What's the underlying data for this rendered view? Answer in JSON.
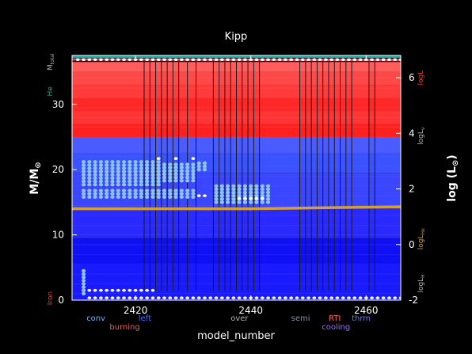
{
  "chart_data": {
    "type": "kippenhahn",
    "title": "Kipp",
    "xlabel": "model_number",
    "ylabel_left": "M/M",
    "ylabel_left_sub": "⊙",
    "ylabel_right": "log (L",
    "ylabel_right_sub": "⊙",
    "ylabel_right_end": ")",
    "xlim": [
      2409,
      2466
    ],
    "ylim_left": [
      0,
      37.5
    ],
    "ylim_right": [
      -2,
      6.8
    ],
    "x_ticks": [
      2420,
      2440,
      2460
    ],
    "y_ticks_left": [
      0,
      10,
      20,
      30
    ],
    "y_ticks_right": [
      -2,
      0,
      2,
      4,
      6
    ],
    "side_labels_left": [
      {
        "text": "M",
        "sub": "total",
        "color": "#b0b0b0",
        "y": 36.5
      },
      {
        "text": "He",
        "sub": "",
        "color": "#2aa198",
        "y": 32.0
      },
      {
        "text": "Iron",
        "sub": "",
        "color": "#ff3030",
        "y": 0.3
      }
    ],
    "side_labels_right": [
      {
        "text": "logL",
        "sub": "",
        "color": "#ff3030",
        "y": 6.0
      },
      {
        "text": "logL",
        "sub": "ν",
        "color": "#b0b0b0",
        "y": 3.9
      },
      {
        "text": "logL",
        "sub": "He",
        "color": "#c8a040",
        "y": 0.2
      },
      {
        "text": "logL",
        "sub": "H",
        "color": "#b0b0b0",
        "y": -1.4
      }
    ],
    "legend": [
      {
        "text": "conv",
        "color": "#6fb0ff",
        "row": 1,
        "x": 2411.5
      },
      {
        "text": "burning",
        "color": "#ff5050",
        "row": 2,
        "x": 2415.5
      },
      {
        "text": "left",
        "color": "#4a6cff",
        "row": 1,
        "x": 2420.5
      },
      {
        "text": "over",
        "color": "#b0b0b0",
        "row": 1,
        "x": 2436.5
      },
      {
        "text": "semi",
        "color": "#8090a0",
        "row": 1,
        "x": 2447.0
      },
      {
        "text": "RTI",
        "color": "#ff6060",
        "row": 1,
        "x": 2453.5
      },
      {
        "text": "cooling",
        "color": "#9a6cff",
        "row": 2,
        "x": 2452.3
      },
      {
        "text": "thrm",
        "color": "#7070ff",
        "row": 1,
        "x": 2457.5
      }
    ],
    "burning_bands": [
      {
        "y0": 0.0,
        "y1": 5.5,
        "color": "#1a1aff"
      },
      {
        "y0": 5.5,
        "y1": 9.5,
        "color": "#1010f5"
      },
      {
        "y0": 9.5,
        "y1": 14.0,
        "color": "#2a2aff"
      },
      {
        "y0": 14.0,
        "y1": 19.5,
        "color": "#3a46ff"
      },
      {
        "y0": 19.5,
        "y1": 22.5,
        "color": "#3a52ff"
      },
      {
        "y0": 22.5,
        "y1": 25.0,
        "color": "#4a5cff"
      },
      {
        "y0": 25.0,
        "y1": 27.0,
        "color": "#ff2020"
      },
      {
        "y0": 27.0,
        "y1": 29.0,
        "color": "#ff3434"
      },
      {
        "y0": 29.0,
        "y1": 31.0,
        "color": "#ff2828"
      },
      {
        "y0": 31.0,
        "y1": 33.0,
        "color": "#ff3c3c"
      },
      {
        "y0": 33.0,
        "y1": 35.0,
        "color": "#ff4848"
      },
      {
        "y0": 35.0,
        "y1": 36.5,
        "color": "#ff5c5c"
      }
    ],
    "total_mass": 36.5,
    "he_core_line": {
      "color": "#d4a030",
      "points": [
        [
          2409,
          14.0
        ],
        [
          2440,
          14.0
        ],
        [
          2452,
          14.15
        ],
        [
          2466,
          14.3
        ]
      ]
    },
    "logL_line": {
      "color": "#e84060",
      "points": [
        [
          2409,
          36.9
        ],
        [
          2466,
          36.8
        ]
      ]
    },
    "mix_region_lines": [
      2421.5,
      2422.5,
      2423.5,
      2424.5,
      2425.5,
      2426.5,
      2427.5,
      2429.0,
      2430.5,
      2433.5,
      2434.5,
      2435.5,
      2436.5,
      2437.5,
      2438.5,
      2439.5,
      2440.5,
      2441.5,
      2448.5,
      2449.5,
      2450.5,
      2451.5,
      2452.5,
      2453.5,
      2454.5,
      2455.5,
      2456.5,
      2457.5,
      2460.5,
      2461.5
    ],
    "conv_dots": [
      {
        "x0": 2411,
        "x1": 2424,
        "step": 1,
        "y0": 17.7,
        "y1": 21.5,
        "dy": 0.5,
        "color": "#8cc4ff"
      },
      {
        "x0": 2425,
        "x1": 2430,
        "step": 1,
        "y0": 18.3,
        "y1": 21.0,
        "dy": 0.5,
        "color": "#8cc4ff"
      },
      {
        "x0": 2431,
        "x1": 2432,
        "step": 1,
        "y0": 20.0,
        "y1": 21.0,
        "dy": 0.5,
        "color": "#8cc4ff"
      },
      {
        "x0": 2411,
        "x1": 2430,
        "step": 1,
        "y0": 15.8,
        "y1": 16.8,
        "dy": 0.5,
        "color": "#8cc4ff"
      },
      {
        "x0": 2434,
        "x1": 2443,
        "step": 1,
        "y0": 15.0,
        "y1": 17.5,
        "dy": 0.5,
        "color": "#8cc4ff"
      },
      {
        "x0": 2411,
        "x1": 2411,
        "step": 1,
        "y0": 1.0,
        "y1": 4.8,
        "dy": 0.5,
        "color": "#8cc4ff"
      }
    ],
    "white_dots": [
      {
        "x0": 2412,
        "x1": 2423,
        "step": 1,
        "y": 1.5,
        "color": "#ffffff"
      },
      {
        "x0": 2412,
        "x1": 2466,
        "step": 1,
        "y": 0.35,
        "color": "#ffffff"
      },
      {
        "x0": 2410,
        "x1": 2466,
        "step": 1,
        "y": 36.85,
        "color": "#ffffff"
      },
      {
        "x0": 2438,
        "x1": 2442,
        "step": 1,
        "y": 15.6,
        "color": "#ffffff"
      },
      {
        "x0": 2431,
        "x1": 2432,
        "step": 1,
        "y": 16.0,
        "color": "#ffffff"
      },
      {
        "x0": 2424,
        "x1": 2430,
        "step": 3,
        "y": 21.7,
        "color": "#ffffff"
      }
    ]
  }
}
